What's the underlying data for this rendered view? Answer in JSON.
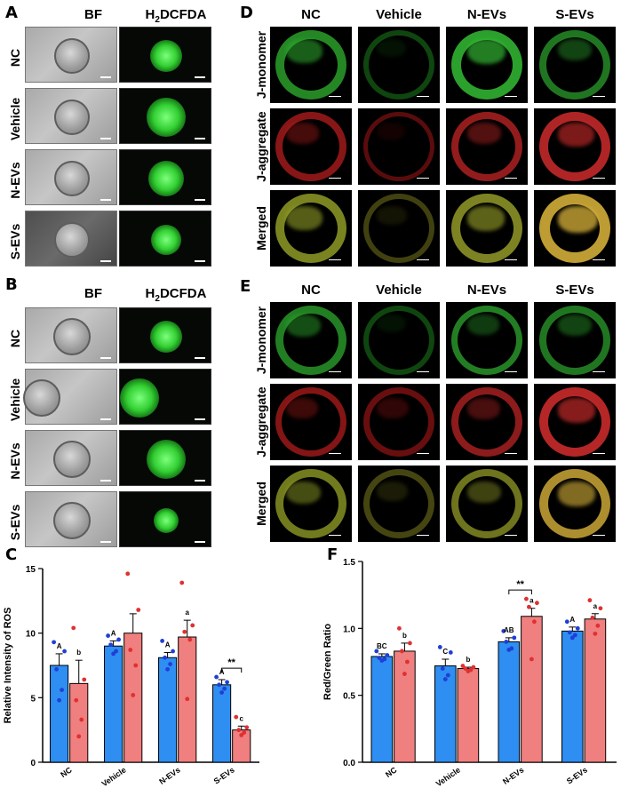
{
  "panels": {
    "A": {
      "letter": "A",
      "col1": "BF",
      "col2": "H",
      "col2_sub": "2",
      "col2_rest": "DCFDA",
      "rows": [
        "NC",
        "Vehicle",
        "N-EVs",
        "S-EVs"
      ]
    },
    "B": {
      "letter": "B",
      "col1": "BF",
      "col2": "H",
      "col2_sub": "2",
      "col2_rest": "DCFDA",
      "rows": [
        "NC",
        "Vehicle",
        "N-EVs",
        "S-EVs"
      ]
    },
    "D": {
      "letter": "D",
      "cols": [
        "NC",
        "Vehicle",
        "N-EVs",
        "S-EVs"
      ],
      "rows": [
        "J-monomer",
        "J-aggregate",
        "Merged"
      ]
    },
    "E": {
      "letter": "E",
      "cols": [
        "NC",
        "Vehicle",
        "N-EVs",
        "S-EVs"
      ],
      "rows": [
        "J-monomer",
        "J-aggregate",
        "Merged"
      ]
    },
    "C": {
      "letter": "C"
    },
    "F": {
      "letter": "F"
    }
  },
  "chart_data": [
    {
      "type": "bar",
      "panel": "C",
      "ylabel": "Relative Intensity of ROS",
      "ylim": [
        0,
        15
      ],
      "yticks": [
        "0",
        "5",
        "10",
        "15"
      ],
      "categories": [
        "NC",
        "Vehicle",
        "N-EVs",
        "S-EVs"
      ],
      "series": [
        {
          "color": "#2e8ef2",
          "dot_color": "#1f3fd6",
          "values": [
            7.5,
            9.0,
            8.1,
            6.0
          ],
          "errors": [
            0.9,
            0.4,
            0.4,
            0.4
          ],
          "letters": [
            "A",
            "A",
            "A",
            "A"
          ],
          "points": [
            [
              9.3,
              8.6,
              7.2,
              5.6,
              4.8
            ],
            [
              9.8,
              9.5,
              9.1,
              8.6,
              8.4
            ],
            [
              9.4,
              8.6,
              8.1,
              7.6,
              7.2
            ],
            [
              6.6,
              6.2,
              6.0,
              5.7,
              5.4
            ]
          ]
        },
        {
          "color": "#f07f7f",
          "dot_color": "#e03030",
          "values": [
            6.1,
            10.0,
            9.7,
            2.5
          ],
          "errors": [
            1.8,
            1.5,
            1.3,
            0.3
          ],
          "letters": [
            "b",
            "",
            "a",
            "c"
          ],
          "points": [
            [
              10.4,
              6.4,
              4.8,
              3.3,
              2.0
            ],
            [
              14.6,
              11.8,
              8.7,
              7.5,
              5.2
            ],
            [
              13.9,
              10.6,
              10.1,
              9.5,
              4.9
            ],
            [
              3.5,
              2.7,
              2.5,
              2.3,
              2.1
            ]
          ]
        }
      ],
      "significance": {
        "category": "S-EVs",
        "label": "**"
      }
    },
    {
      "type": "bar",
      "panel": "F",
      "ylabel": "Red/Green Ratio",
      "ylim": [
        0,
        1.5
      ],
      "yticks": [
        "0.0",
        "0.5",
        "1.0",
        "1.5"
      ],
      "categories": [
        "NC",
        "Vehicle",
        "N-EVs",
        "S-EVs"
      ],
      "series": [
        {
          "color": "#2e8ef2",
          "dot_color": "#1f3fd6",
          "values": [
            0.79,
            0.72,
            0.9,
            0.98
          ],
          "errors": [
            0.02,
            0.05,
            0.03,
            0.03
          ],
          "letters": [
            "BC",
            "C",
            "AB",
            "A"
          ],
          "points": [
            [
              0.83,
              0.8,
              0.78,
              0.77,
              0.76
            ],
            [
              0.86,
              0.82,
              0.7,
              0.65,
              0.62
            ],
            [
              0.98,
              0.93,
              0.9,
              0.85,
              0.84
            ],
            [
              1.05,
              1.0,
              0.97,
              0.95,
              0.93
            ]
          ]
        },
        {
          "color": "#f07f7f",
          "dot_color": "#e03030",
          "values": [
            0.83,
            0.7,
            1.09,
            1.07
          ],
          "errors": [
            0.06,
            0.01,
            0.06,
            0.04
          ],
          "letters": [
            "b",
            "b",
            "a",
            "a"
          ],
          "points": [
            [
              1.0,
              0.89,
              0.83,
              0.75,
              0.66
            ],
            [
              0.72,
              0.71,
              0.7,
              0.69,
              0.68
            ],
            [
              1.22,
              1.19,
              1.16,
              1.05,
              0.77
            ],
            [
              1.21,
              1.15,
              1.08,
              1.02,
              0.96
            ]
          ]
        }
      ],
      "significance": {
        "category": "N-EVs",
        "label": "**"
      }
    }
  ]
}
